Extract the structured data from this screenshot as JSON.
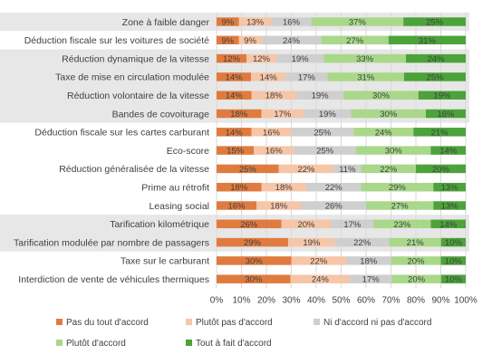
{
  "chart_data": {
    "type": "bar",
    "orientation": "horizontal",
    "stacked": true,
    "xlim": [
      0,
      100
    ],
    "x_ticks": [
      "0%",
      "10%",
      "20%",
      "30%",
      "40%",
      "50%",
      "60%",
      "70%",
      "80%",
      "90%",
      "100%"
    ],
    "legend_position": "bottom",
    "grid": "vertical",
    "categories": [
      "Zone à faible danger",
      "Déduction fiscale sur les voitures de société",
      "Réduction dynamique de la vitesse",
      "Taxe de mise en circulation modulée",
      "Réduction volontaire de la vitesse",
      "Bandes de covoiturage",
      "Déduction fiscale sur les cartes carburant",
      "Eco-score",
      "Réduction généralisée de la vitesse",
      "Prime au rétrofit",
      "Leasing social",
      "Tarification kilométrique",
      "Tarification modulée par nombre de passagers",
      "Taxe sur le carburant",
      "Interdiction de vente de véhicules thermiques"
    ],
    "shaded_groups": [
      [
        0,
        0
      ],
      [
        2,
        3
      ],
      [
        4,
        5
      ],
      [
        11,
        12
      ]
    ],
    "series": [
      {
        "name": "Pas du tout d'accord",
        "color": "#e07b3f",
        "values": [
          9,
          9,
          12,
          14,
          14,
          18,
          14,
          15,
          25,
          18,
          16,
          26,
          29,
          30,
          30
        ]
      },
      {
        "name": "Plutôt pas d'accord",
        "color": "#f6c6a8",
        "values": [
          13,
          9,
          12,
          14,
          18,
          17,
          16,
          16,
          22,
          18,
          18,
          20,
          19,
          22,
          24
        ]
      },
      {
        "name": "Ni d'accord ni pas d'accord",
        "color": "#cfcfcf",
        "values": [
          16,
          24,
          19,
          17,
          19,
          19,
          25,
          25,
          11,
          22,
          26,
          17,
          22,
          18,
          17
        ]
      },
      {
        "name": "Plutôt d'accord",
        "color": "#a9d88a",
        "values": [
          37,
          27,
          33,
          31,
          30,
          30,
          24,
          30,
          22,
          29,
          27,
          23,
          21,
          20,
          20
        ]
      },
      {
        "name": "Tout à fait d'accord",
        "color": "#4ca33a",
        "values": [
          25,
          31,
          24,
          25,
          19,
          16,
          21,
          14,
          20,
          13,
          13,
          14,
          10,
          10,
          10
        ]
      }
    ],
    "value_suffix": "%"
  }
}
